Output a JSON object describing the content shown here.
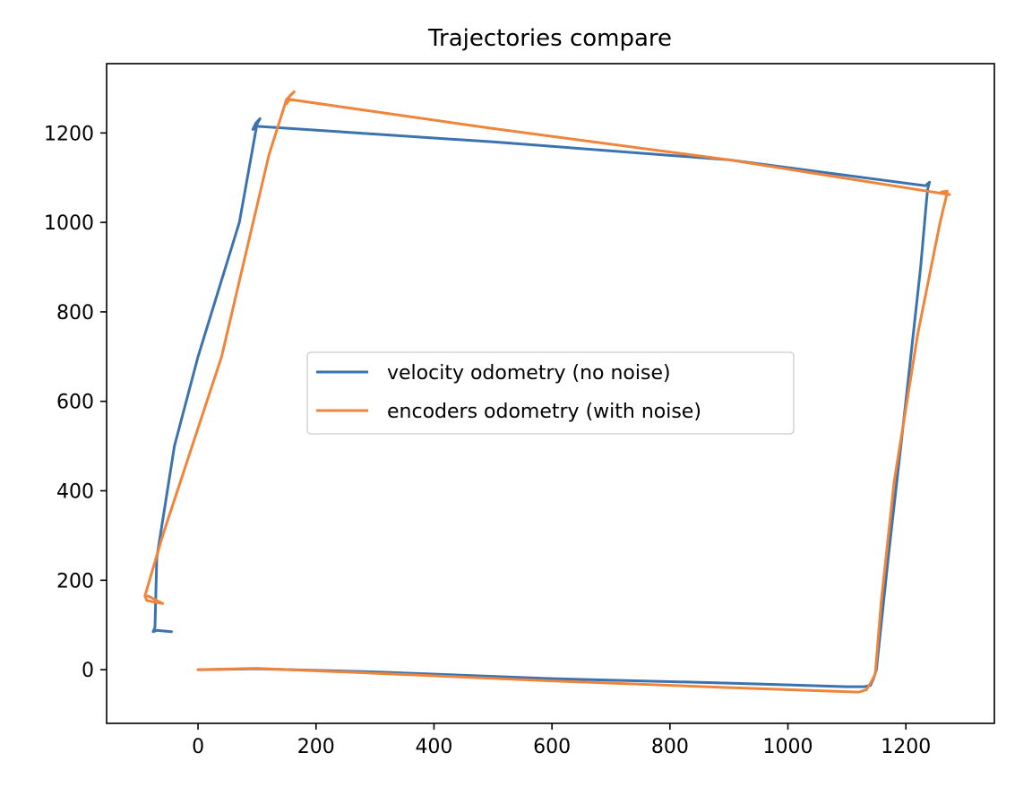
{
  "chart_data": {
    "type": "line",
    "title": "Trajectories compare",
    "xlabel": "",
    "ylabel": "",
    "xlim": [
      -155,
      1350
    ],
    "ylim": [
      -120,
      1355
    ],
    "xticks": [
      0,
      200,
      400,
      600,
      800,
      1000,
      1200
    ],
    "yticks": [
      0,
      200,
      400,
      600,
      800,
      1000,
      1200
    ],
    "grid": false,
    "legend_position": "center",
    "series": [
      {
        "name": "velocity odometry (no noise)",
        "color": "#3a73b0",
        "x": [
          0,
          100,
          300,
          600,
          900,
          1100,
          1130,
          1140,
          1145,
          1150,
          1158,
          1170,
          1200,
          1225,
          1235,
          1237,
          1240,
          1233,
          900,
          500,
          100,
          93,
          98,
          105,
          100,
          70,
          0,
          -40,
          -70,
          -73,
          -76,
          -70,
          -45
        ],
        "y": [
          0,
          2,
          -5,
          -20,
          -30,
          -38,
          -38,
          -35,
          -20,
          0,
          100,
          250,
          600,
          900,
          1050,
          1075,
          1090,
          1082,
          1140,
          1180,
          1215,
          1208,
          1222,
          1232,
          1220,
          1000,
          700,
          500,
          250,
          95,
          85,
          88,
          85
        ]
      },
      {
        "name": "encoders odometry (with noise)",
        "color": "#f0843a",
        "x": [
          0,
          100,
          300,
          600,
          900,
          1120,
          1133,
          1140,
          1148,
          1158,
          1180,
          1220,
          1258,
          1268,
          1270,
          1260,
          1274,
          900,
          500,
          155,
          150,
          155,
          163,
          150,
          120,
          40,
          -60,
          -90,
          -87,
          -77,
          -60,
          -85
        ],
        "y": [
          0,
          3,
          -8,
          -25,
          -40,
          -50,
          -45,
          -30,
          -10,
          150,
          420,
          750,
          1000,
          1055,
          1070,
          1068,
          1062,
          1140,
          1210,
          1275,
          1265,
          1282,
          1292,
          1275,
          1150,
          700,
          300,
          165,
          155,
          152,
          148,
          165
        ]
      }
    ]
  }
}
